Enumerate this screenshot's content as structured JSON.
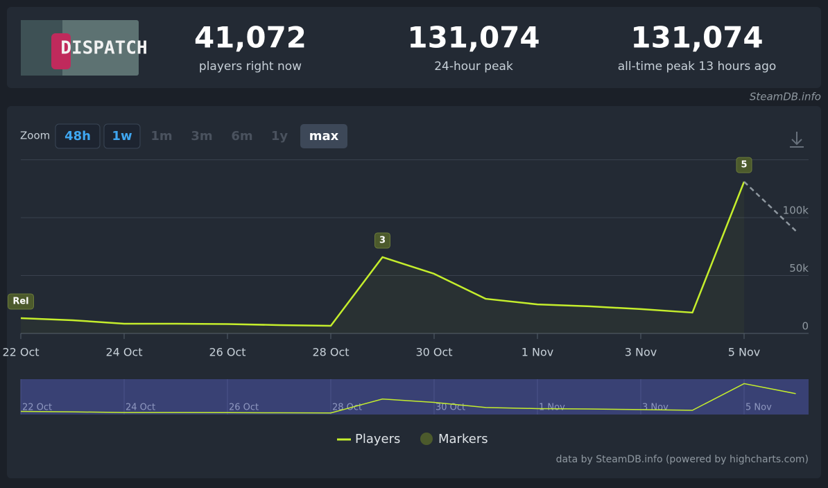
{
  "stats": [
    {
      "value": "41,072",
      "label": "players right now"
    },
    {
      "value": "131,074",
      "label": "24-hour peak"
    },
    {
      "value": "131,074",
      "label": "all-time peak 13 hours ago"
    }
  ],
  "game_logo": "DISPATCH",
  "source": "SteamDB.info",
  "zoom": {
    "label": "Zoom",
    "buttons": [
      "48h",
      "1w",
      "1m",
      "3m",
      "6m",
      "1y",
      "max"
    ],
    "linked": [
      0,
      1
    ],
    "active": 6
  },
  "credit": "data by SteamDB.info (powered by highcharts.com)",
  "chart_data": {
    "type": "line",
    "x": [
      "22 Oct",
      "23 Oct",
      "24 Oct",
      "25 Oct",
      "26 Oct",
      "27 Oct",
      "28 Oct",
      "29 Oct",
      "30 Oct",
      "31 Oct",
      "1 Nov",
      "2 Nov",
      "3 Nov",
      "4 Nov",
      "5 Nov",
      "6 Nov"
    ],
    "series": [
      {
        "name": "Players",
        "color": "#c5ee2c",
        "values": [
          13200,
          11400,
          8400,
          8400,
          8100,
          7200,
          6600,
          65900,
          51500,
          29900,
          25100,
          23400,
          21000,
          18000,
          131074,
          88600
        ]
      }
    ],
    "dashed_last": true,
    "markers_name": "Markers",
    "markers": [
      {
        "label": "Rel",
        "x": "22 Oct"
      },
      {
        "label": "3",
        "x": "29 Oct"
      },
      {
        "label": "5",
        "x": "5 Nov"
      }
    ],
    "xticks": [
      "22 Oct",
      "24 Oct",
      "26 Oct",
      "28 Oct",
      "30 Oct",
      "1 Nov",
      "3 Nov",
      "5 Nov"
    ],
    "ylim": [
      0,
      150000
    ],
    "yticks": [
      {
        "value": 0,
        "label": "0"
      },
      {
        "value": 50000,
        "label": "50k"
      },
      {
        "value": 100000,
        "label": "100k"
      }
    ],
    "grid": true
  }
}
